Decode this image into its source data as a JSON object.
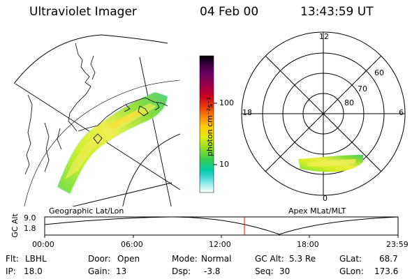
{
  "header": {
    "instrument": "Ultraviolet Imager",
    "date": "04 Feb 00",
    "time": "13:43:59 UT"
  },
  "colorbar": {
    "unit_label": "photon cm⁻²s⁻¹",
    "ticks": [
      "100",
      "10"
    ],
    "colors": [
      "#000000",
      "#3a0040",
      "#6a0060",
      "#a0004a",
      "#cc0020",
      "#ee4400",
      "#ff8800",
      "#ffcc00",
      "#ddee00",
      "#88dd22",
      "#33cc55",
      "#00ccaa",
      "#55dddd",
      "#aaf0f0",
      "#ffffff"
    ]
  },
  "geo_panel": {
    "label": "Geographic Lat/Lon"
  },
  "polar_panel": {
    "label": "Apex MLat/MLT",
    "mlt_labels": {
      "top": "12",
      "left": "18",
      "right": "6",
      "bottom": "0"
    },
    "lat_labels": [
      "60",
      "70",
      "80"
    ]
  },
  "timeline": {
    "ylabel": "GC Alt",
    "yticks": [
      "9.0",
      "1.8"
    ],
    "xticks": [
      "00:00",
      "06:00",
      "12:00",
      "18:00",
      "23:59"
    ],
    "current_marker_color": "#ff0000"
  },
  "info": {
    "filter": {
      "label": "Flt:",
      "value": "LBHL"
    },
    "ip": {
      "label": "IP:",
      "value": "18.0"
    },
    "door": {
      "label": "Door:",
      "value": "Open"
    },
    "gain": {
      "label": "Gain:",
      "value": "13"
    },
    "mode": {
      "label": "Mode:",
      "value": "Normal"
    },
    "dsp": {
      "label": "Dsp:",
      "value": "-3.8"
    },
    "gc_alt": {
      "label": "GC Alt:",
      "value": "5.3 Re"
    },
    "seq": {
      "label": "Seq:",
      "value": "30"
    },
    "glat": {
      "label": "GLat:",
      "value": "68.7"
    },
    "glon": {
      "label": "GLon:",
      "value": "173.6"
    }
  }
}
